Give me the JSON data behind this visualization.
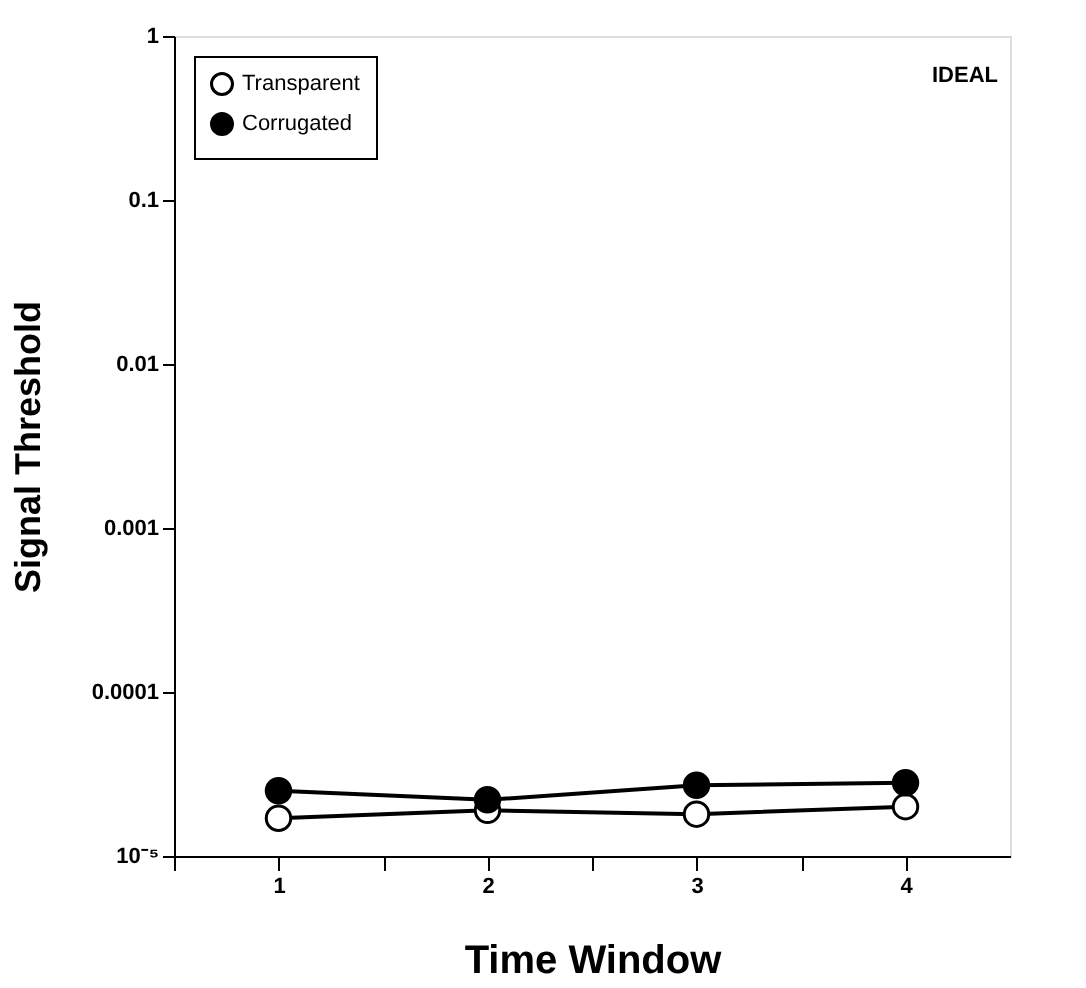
{
  "chart_data": {
    "type": "line",
    "xlabel": "Time Window",
    "ylabel": "Signal Threshold",
    "x": [
      1,
      2,
      3,
      4
    ],
    "series": [
      {
        "name": "Transparent",
        "color": "#ffffff",
        "values": [
          1.7e-05,
          1.9e-05,
          1.8e-05,
          2e-05
        ]
      },
      {
        "name": "Corrugated",
        "color": "#000000",
        "values": [
          2.5e-05,
          2.2e-05,
          2.7e-05,
          2.8e-05
        ]
      }
    ],
    "xlim": [
      0.5,
      4.5
    ],
    "xticks": [
      {
        "value": 0.5,
        "label": null
      },
      1,
      {
        "value": 1.5,
        "label": null
      },
      2,
      {
        "value": 2.5,
        "label": null
      },
      3,
      {
        "value": 3.5,
        "label": null
      },
      4
    ],
    "ylim": [
      1e-05,
      1
    ],
    "log": true,
    "yticks": [
      {
        "value": 1e-05,
        "label": "10⁻⁵"
      },
      {
        "value": 0.0001,
        "label": "0.0001"
      },
      {
        "value": 0.001,
        "label": "0.001"
      },
      {
        "value": 0.01,
        "label": "0.01"
      },
      {
        "value": 0.1,
        "label": "0.1"
      },
      1
    ],
    "annotations": [
      "IDEAL"
    ],
    "marker": "circle",
    "line_style": "solid",
    "grid": false,
    "legend": "top left"
  }
}
